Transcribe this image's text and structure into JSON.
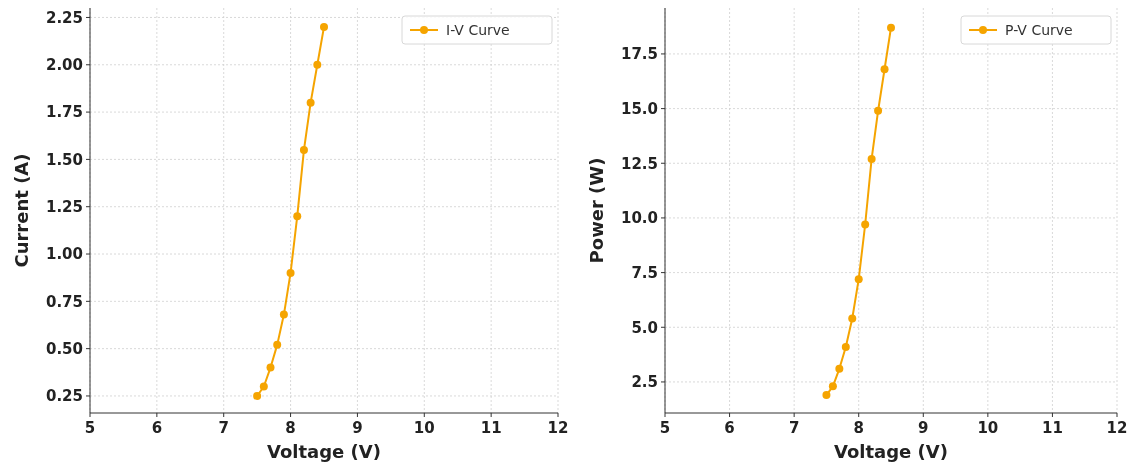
{
  "chart_data": [
    {
      "type": "line",
      "xlabel": "Voltage (V)",
      "ylabel": "Current (A)",
      "x": [
        7.5,
        7.6,
        7.7,
        7.8,
        7.9,
        8.0,
        8.1,
        8.2,
        8.3,
        8.4,
        8.5
      ],
      "series": [
        {
          "name": "I-V Curve",
          "color": "#f5a400",
          "values": [
            0.25,
            0.3,
            0.4,
            0.52,
            0.68,
            0.9,
            1.2,
            1.55,
            1.8,
            2.0,
            2.2
          ]
        }
      ],
      "xlim": [
        5,
        12
      ],
      "xticks": [
        5,
        6,
        7,
        8,
        9,
        10,
        11,
        12
      ],
      "ylim": [
        0.16,
        2.3
      ],
      "yticks": [
        {
          "value": 0.25,
          "label": "0.25"
        },
        {
          "value": 0.5,
          "label": "0.50"
        },
        {
          "value": 0.75,
          "label": "0.75"
        },
        {
          "value": 1,
          "label": "1.00"
        },
        {
          "value": 1.25,
          "label": "1.25"
        },
        {
          "value": 1.5,
          "label": "1.50"
        },
        {
          "value": 1.75,
          "label": "1.75"
        },
        {
          "value": 2,
          "label": "2.00"
        },
        {
          "value": 2.25,
          "label": "2.25"
        }
      ],
      "grid": true,
      "legend": "top right",
      "marker": "circle",
      "line_style": "solid"
    },
    {
      "type": "line",
      "xlabel": "Voltage (V)",
      "ylabel": "Power (W)",
      "x": [
        7.5,
        7.6,
        7.7,
        7.8,
        7.9,
        8.0,
        8.1,
        8.2,
        8.3,
        8.4,
        8.5
      ],
      "series": [
        {
          "name": "P-V Curve",
          "color": "#f5a400",
          "values": [
            1.9,
            2.3,
            3.1,
            4.1,
            5.4,
            7.2,
            9.7,
            12.7,
            14.9,
            16.8,
            18.7
          ]
        }
      ],
      "xlim": [
        5,
        12
      ],
      "xticks": [
        5,
        6,
        7,
        8,
        9,
        10,
        11,
        12
      ],
      "ylim": [
        1.08,
        19.6
      ],
      "yticks": [
        {
          "value": 2.5,
          "label": "2.5"
        },
        {
          "value": 5,
          "label": "5.0"
        },
        {
          "value": 7.5,
          "label": "7.5"
        },
        {
          "value": 10,
          "label": "10.0"
        },
        {
          "value": 12.5,
          "label": "12.5"
        },
        {
          "value": 15,
          "label": "15.0"
        },
        {
          "value": 17.5,
          "label": "17.5"
        }
      ],
      "grid": true,
      "legend": "top right",
      "marker": "circle",
      "line_style": "solid"
    }
  ]
}
